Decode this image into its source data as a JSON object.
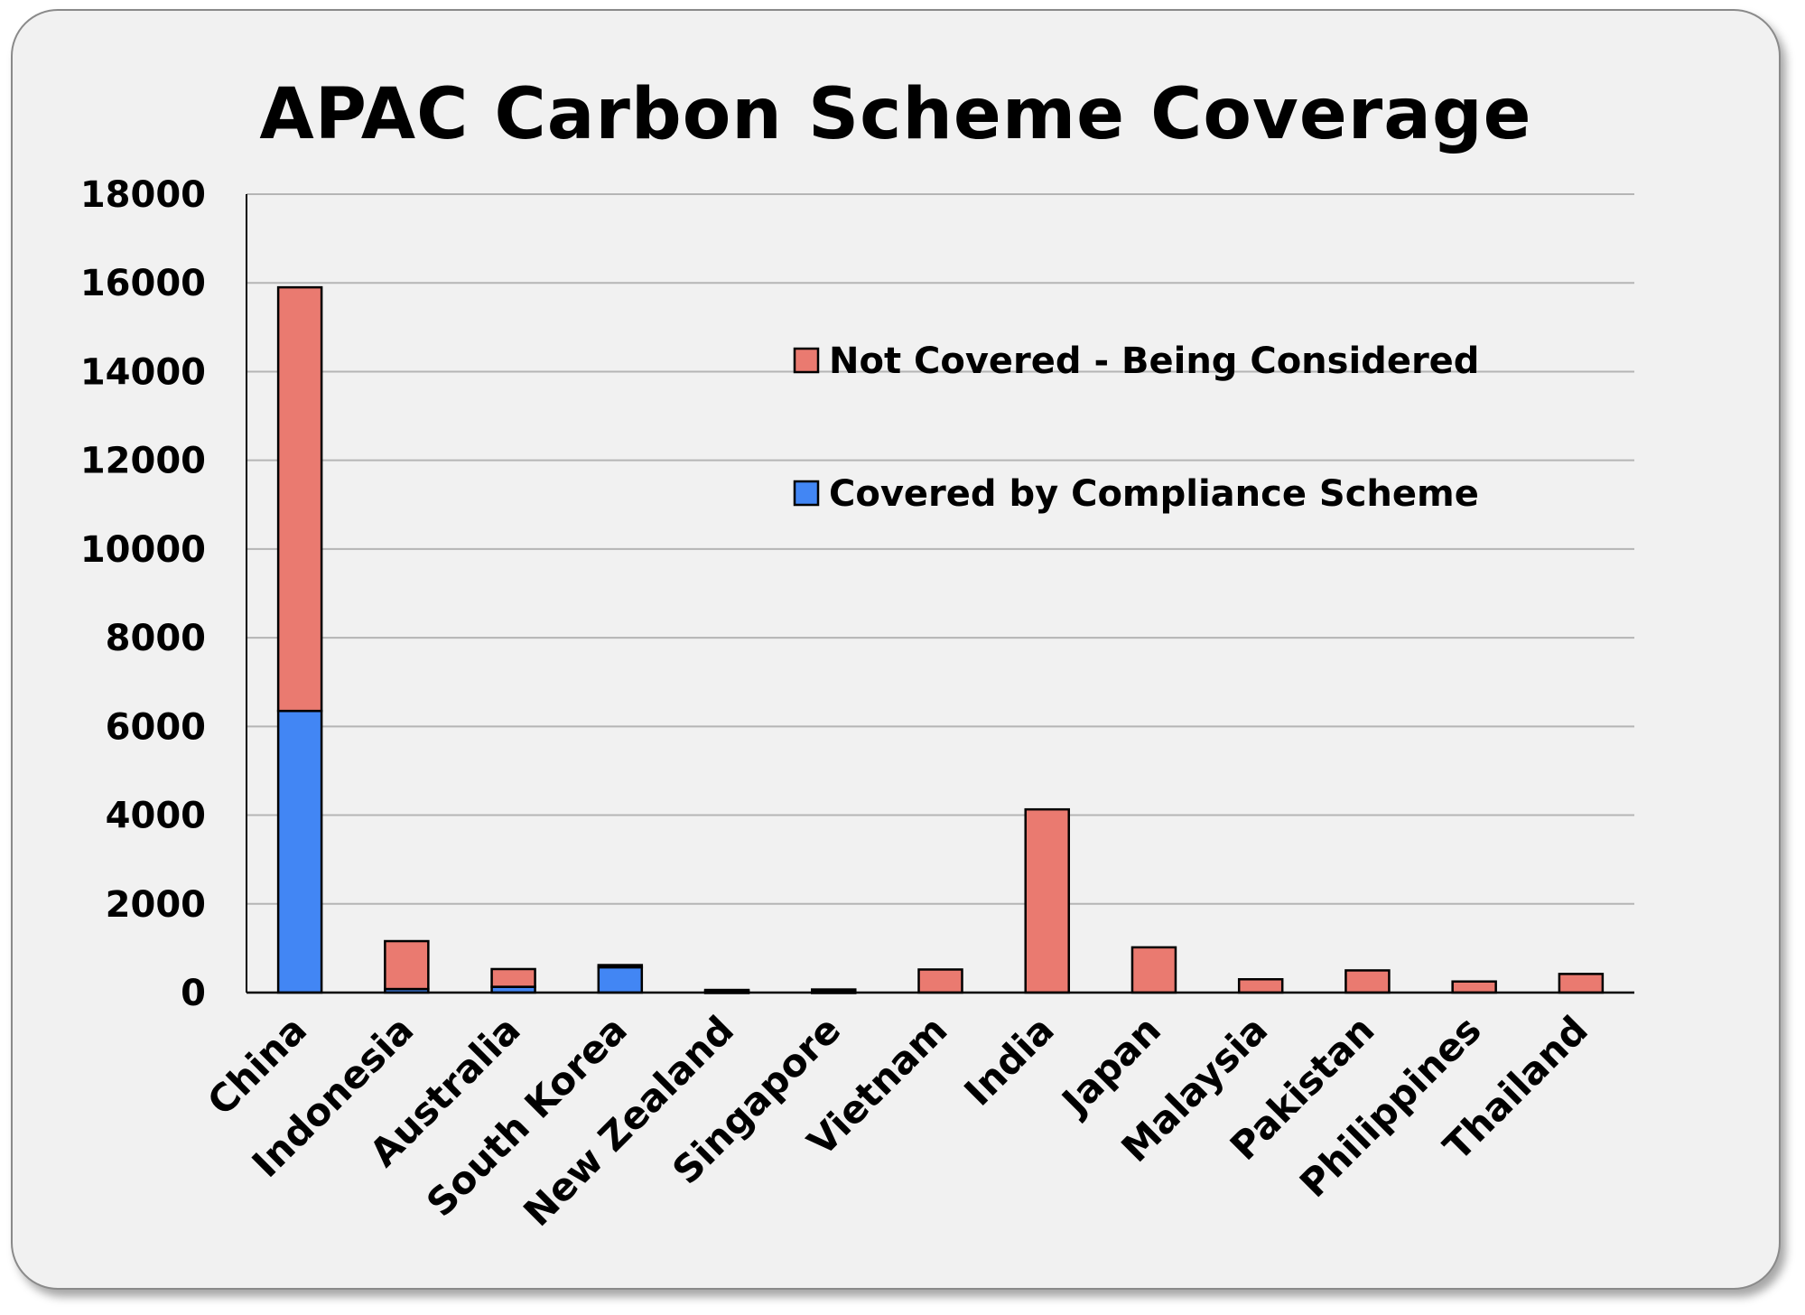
{
  "chart_data": {
    "type": "bar",
    "stacked": true,
    "title": "APAC Carbon Scheme Coverage",
    "xlabel": "",
    "ylabel": "",
    "ylim": [
      0,
      18000
    ],
    "yticks": [
      0,
      2000,
      4000,
      6000,
      8000,
      10000,
      12000,
      14000,
      16000,
      18000
    ],
    "grid": true,
    "legend_position": "upper-right inside plot",
    "categories": [
      "China",
      "Indonesia",
      "Australia",
      "South Korea",
      "New Zealand",
      "Singapore",
      "Vietnam",
      "India",
      "Japan",
      "Malaysia",
      "Pakistan",
      "Philippines",
      "Thailand"
    ],
    "series": [
      {
        "name": "Covered by Compliance Scheme",
        "color": "#4286f4",
        "values": [
          6350,
          80,
          130,
          570,
          30,
          30,
          0,
          0,
          0,
          0,
          0,
          0,
          0
        ]
      },
      {
        "name": "Not Covered - Being Considered",
        "color": "#ea7a70",
        "values": [
          9550,
          1080,
          400,
          50,
          30,
          40,
          520,
          4130,
          1020,
          300,
          500,
          250,
          420
        ]
      }
    ]
  }
}
